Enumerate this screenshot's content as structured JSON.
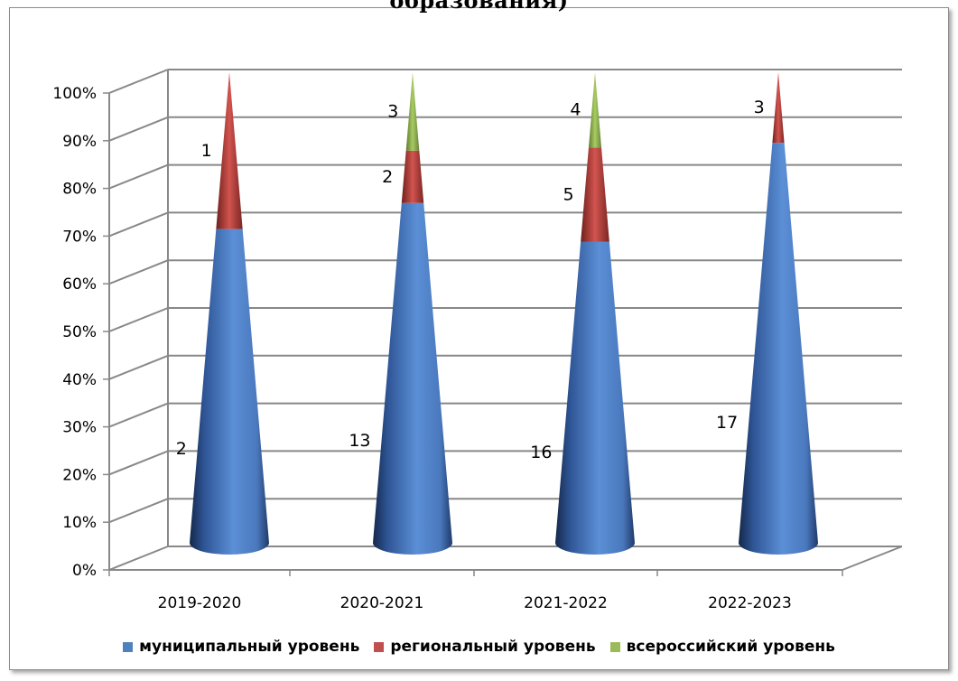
{
  "page": {
    "title": "образования)"
  },
  "chart_data": {
    "type": "bar",
    "shape": "cone",
    "stacking": "percent",
    "categories": [
      "2019-2020",
      "2020-2021",
      "2021-2022",
      "2022-2023"
    ],
    "series": [
      {
        "name": "муниципальный уровень",
        "values": [
          2,
          13,
          16,
          17
        ],
        "color": "#4f81bd"
      },
      {
        "name": "региональный уровень",
        "values": [
          1,
          2,
          5,
          3
        ],
        "color": "#c0504d"
      },
      {
        "name": "всероссийский уровень",
        "values": [
          0,
          3,
          4,
          0
        ],
        "color": "#9bbb59"
      }
    ],
    "ylim": [
      0,
      100
    ],
    "yticks": [
      "0%",
      "10%",
      "20%",
      "30%",
      "40%",
      "50%",
      "60%",
      "70%",
      "80%",
      "90%",
      "100%"
    ],
    "grid": true,
    "legend_position": "bottom",
    "data_labels": [
      [
        "2",
        "1",
        ""
      ],
      [
        "13",
        "2",
        "3"
      ],
      [
        "16",
        "5",
        "4"
      ],
      [
        "17",
        "3",
        ""
      ]
    ]
  }
}
